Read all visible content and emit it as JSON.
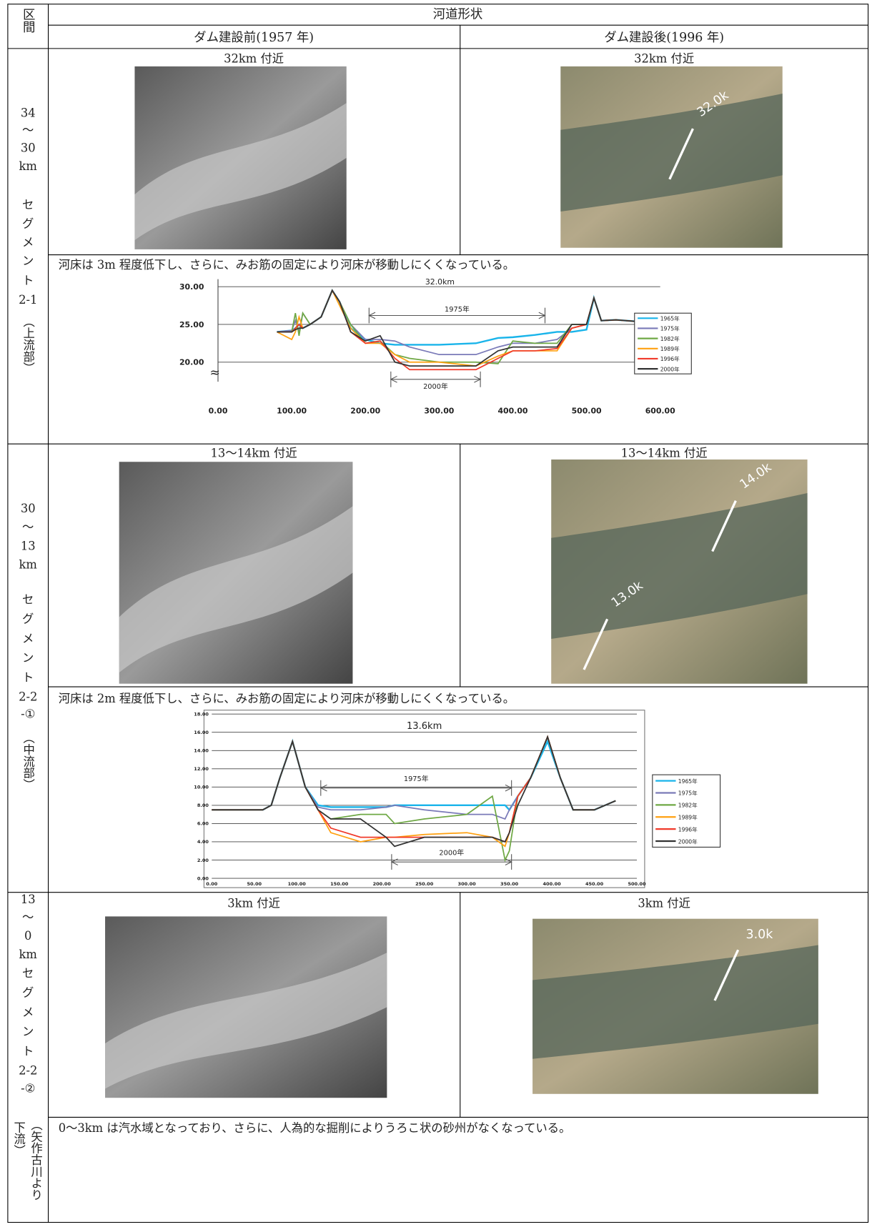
{
  "header": {
    "section": "区間",
    "title": "河道形状",
    "before": "ダム建設前(1957 年)",
    "after": "ダム建設後(1996 年)"
  },
  "rows": [
    {
      "label_lines": [
        "34",
        "〜",
        "30",
        "km",
        "セ",
        "グ",
        "メ",
        "ン",
        "ト",
        "2-1"
      ],
      "label_note": [
        "（上流部）"
      ],
      "before_caption": "32km 付近",
      "after_caption": "32km 付近",
      "photo_labels": [
        "32.0k"
      ],
      "comment": "河床は 3m 程度低下し、さらに、みお筋の固定により河床が移動しにくくなっている。"
    },
    {
      "label_lines": [
        "30",
        "〜",
        "13",
        "km",
        "セ",
        "グ",
        "メ",
        "ン",
        "ト",
        "2-2",
        "-①"
      ],
      "label_note": [
        "（中流部）"
      ],
      "before_caption": "13〜14km 付近",
      "after_caption": "13〜14km 付近",
      "photo_labels": [
        "14.0k",
        "13.0k"
      ],
      "comment": "河床は 2m 程度低下し、さらに、みお筋の固定により河床が移動しにくくなっている。"
    },
    {
      "label_lines": [
        "13",
        "〜",
        "0",
        "km",
        "セ",
        "グ",
        "メ",
        "ン",
        "ト",
        "2-2",
        "-②"
      ],
      "label_note": [
        "（矢作古川より",
        "下流）"
      ],
      "before_caption": "3km 付近",
      "after_caption": "3km 付近",
      "photo_labels": [
        "3.0k"
      ],
      "comment": "0〜3km は汽水域となっており、さらに、人為的な掘削によりうろこ状の砂州がなくなっている。"
    }
  ],
  "chart_data": [
    {
      "type": "line",
      "title": "32.0km",
      "annotations": [
        "1975年",
        "2000年"
      ],
      "grid": true,
      "x": [
        80,
        100,
        105,
        110,
        115,
        125,
        140,
        155,
        165,
        180,
        200,
        220,
        240,
        260,
        300,
        350,
        380,
        400,
        430,
        460,
        480,
        500,
        510,
        520,
        540,
        580
      ],
      "xlim": [
        0,
        600
      ],
      "xticks": [
        {
          "value": 0,
          "label": "0.00"
        },
        {
          "value": 100,
          "label": "100.00"
        },
        {
          "value": 200,
          "label": "200.00"
        },
        {
          "value": 300,
          "label": "300.00"
        },
        {
          "value": 400,
          "label": "400.00"
        },
        {
          "value": 500,
          "label": "500.00"
        },
        {
          "value": 600,
          "label": "600.00"
        }
      ],
      "ylim": [
        17,
        31
      ],
      "yticks": [
        {
          "value": 20,
          "label": "20.00"
        },
        {
          "value": 25,
          "label": "25.00"
        },
        {
          "value": 30,
          "label": "30.00"
        }
      ],
      "series": [
        {
          "name": "1965年",
          "color": "#19b4ea",
          "values": [
            24,
            24.2,
            24.5,
            25,
            24.5,
            25,
            26,
            29.5,
            28,
            24.5,
            23,
            22.5,
            22.3,
            22.3,
            22.3,
            22.5,
            23.2,
            23.3,
            23.6,
            24,
            24,
            24.3,
            28.5,
            25.5,
            25.6,
            25.3
          ]
        },
        {
          "name": "1975年",
          "color": "#7a7ab8",
          "values": [
            24,
            24.2,
            25.5,
            24,
            26.5,
            25,
            26,
            29.5,
            28,
            25,
            23,
            23,
            22.8,
            22,
            21,
            21,
            22,
            22.5,
            22.5,
            23,
            24.5,
            25,
            28.5,
            25.5,
            25.6,
            25.3
          ]
        },
        {
          "name": "1982年",
          "color": "#6fa845",
          "values": [
            24,
            24,
            26.5,
            23.5,
            26.5,
            25,
            26,
            29.5,
            28,
            25,
            22.5,
            22.8,
            21,
            20.5,
            20,
            20,
            19.8,
            22.8,
            22.5,
            22.5,
            25,
            25,
            28.5,
            25.5,
            25.6,
            25.3
          ]
        },
        {
          "name": "1989年",
          "color": "#ffa010",
          "values": [
            24,
            23,
            24,
            26,
            24.5,
            25,
            26,
            29.5,
            27.5,
            24.5,
            22.5,
            22.5,
            21,
            20,
            20,
            19.5,
            20.8,
            21.5,
            21.5,
            21.5,
            24.5,
            25,
            28.5,
            25.5,
            25.6,
            25.3
          ]
        },
        {
          "name": "1996年",
          "color": "#f03a2a",
          "values": [
            24,
            24,
            24.5,
            25,
            24.5,
            25,
            26,
            29.5,
            28,
            24,
            22.5,
            22.8,
            20.5,
            19,
            19,
            19,
            20.5,
            21.5,
            21.5,
            21.8,
            24.5,
            25,
            28.5,
            25.5,
            25.6,
            25.3
          ]
        },
        {
          "name": "2000年",
          "color": "#333333",
          "values": [
            24,
            24,
            24.3,
            24.5,
            24.5,
            25,
            26,
            29.5,
            28,
            24,
            22.8,
            23.5,
            20,
            19.5,
            19.5,
            19.5,
            21.5,
            22,
            22,
            22,
            25,
            25,
            28.5,
            25.5,
            25.6,
            25.3
          ]
        }
      ]
    },
    {
      "type": "line",
      "title": "13.6km",
      "annotations": [
        "1975年",
        "2000年"
      ],
      "grid": true,
      "x": [
        0,
        60,
        70,
        80,
        95,
        110,
        125,
        140,
        175,
        205,
        215,
        250,
        300,
        330,
        345,
        350,
        360,
        375,
        395,
        410,
        425,
        450,
        475
      ],
      "xlim": [
        0,
        500
      ],
      "xticks": [
        {
          "value": 0,
          "label": "0.00"
        },
        {
          "value": 50,
          "label": "50.00"
        },
        {
          "value": 100,
          "label": "100.00"
        },
        {
          "value": 150,
          "label": "150.00"
        },
        {
          "value": 200,
          "label": "200.00"
        },
        {
          "value": 250,
          "label": "250.00"
        },
        {
          "value": 300,
          "label": "300.00"
        },
        {
          "value": 350,
          "label": "350.00"
        },
        {
          "value": 400,
          "label": "400.00"
        },
        {
          "value": 450,
          "label": "450.00"
        },
        {
          "value": 500,
          "label": "500.00"
        }
      ],
      "ylim": [
        0,
        18
      ],
      "yticks": [
        {
          "value": 0,
          "label": "0.00"
        },
        {
          "value": 2,
          "label": "2.00"
        },
        {
          "value": 4,
          "label": "4.00"
        },
        {
          "value": 6,
          "label": "6.00"
        },
        {
          "value": 8,
          "label": "8.00"
        },
        {
          "value": 10,
          "label": "10.00"
        },
        {
          "value": 12,
          "label": "12.00"
        },
        {
          "value": 14,
          "label": "14.00"
        },
        {
          "value": 16,
          "label": "16.00"
        },
        {
          "value": 18,
          "label": "18.00"
        }
      ],
      "series": [
        {
          "name": "1965年",
          "color": "#19b4ea",
          "values": [
            7.5,
            7.5,
            8,
            11,
            15,
            10,
            8,
            7.8,
            7.8,
            7.8,
            8,
            8,
            8,
            8,
            8,
            7.5,
            9,
            11,
            15,
            11,
            7.5,
            7.5,
            8.5
          ]
        },
        {
          "name": "1975年",
          "color": "#7a7ab8",
          "values": [
            7.5,
            7.5,
            8,
            11,
            15,
            10,
            7.8,
            7.5,
            7.5,
            7.8,
            8,
            7.5,
            7,
            7,
            6.5,
            7.5,
            9,
            11,
            15.5,
            11,
            7.5,
            7.5,
            8.5
          ]
        },
        {
          "name": "1982年",
          "color": "#6fa845",
          "values": [
            7.5,
            7.5,
            8,
            11,
            15,
            10,
            7.5,
            6.5,
            7,
            7,
            6,
            6.5,
            7,
            9,
            2,
            3,
            9,
            11,
            15.5,
            11,
            7.5,
            7.5,
            8.5
          ]
        },
        {
          "name": "1989年",
          "color": "#ffa010",
          "values": [
            7.5,
            7.5,
            8,
            11,
            15,
            10,
            7.5,
            5,
            4,
            4.5,
            4.5,
            4.8,
            5,
            4.5,
            3.5,
            5,
            9,
            11,
            15.5,
            11,
            7.5,
            7.5,
            8.5
          ]
        },
        {
          "name": "1996年",
          "color": "#f03a2a",
          "values": [
            7.5,
            7.5,
            8,
            11,
            15,
            10,
            7.5,
            5.5,
            4.5,
            4.5,
            4.5,
            4.5,
            4.5,
            4.5,
            4,
            5,
            9,
            11,
            15.5,
            11,
            7.5,
            7.5,
            8.5
          ]
        },
        {
          "name": "2000年",
          "color": "#333333",
          "values": [
            7.5,
            7.5,
            8,
            11,
            15,
            10,
            7.5,
            6.5,
            6.5,
            4.5,
            3.5,
            4.5,
            4.5,
            4.5,
            4,
            5,
            8,
            11,
            15.5,
            11,
            7.5,
            7.5,
            8.5
          ]
        }
      ]
    }
  ]
}
